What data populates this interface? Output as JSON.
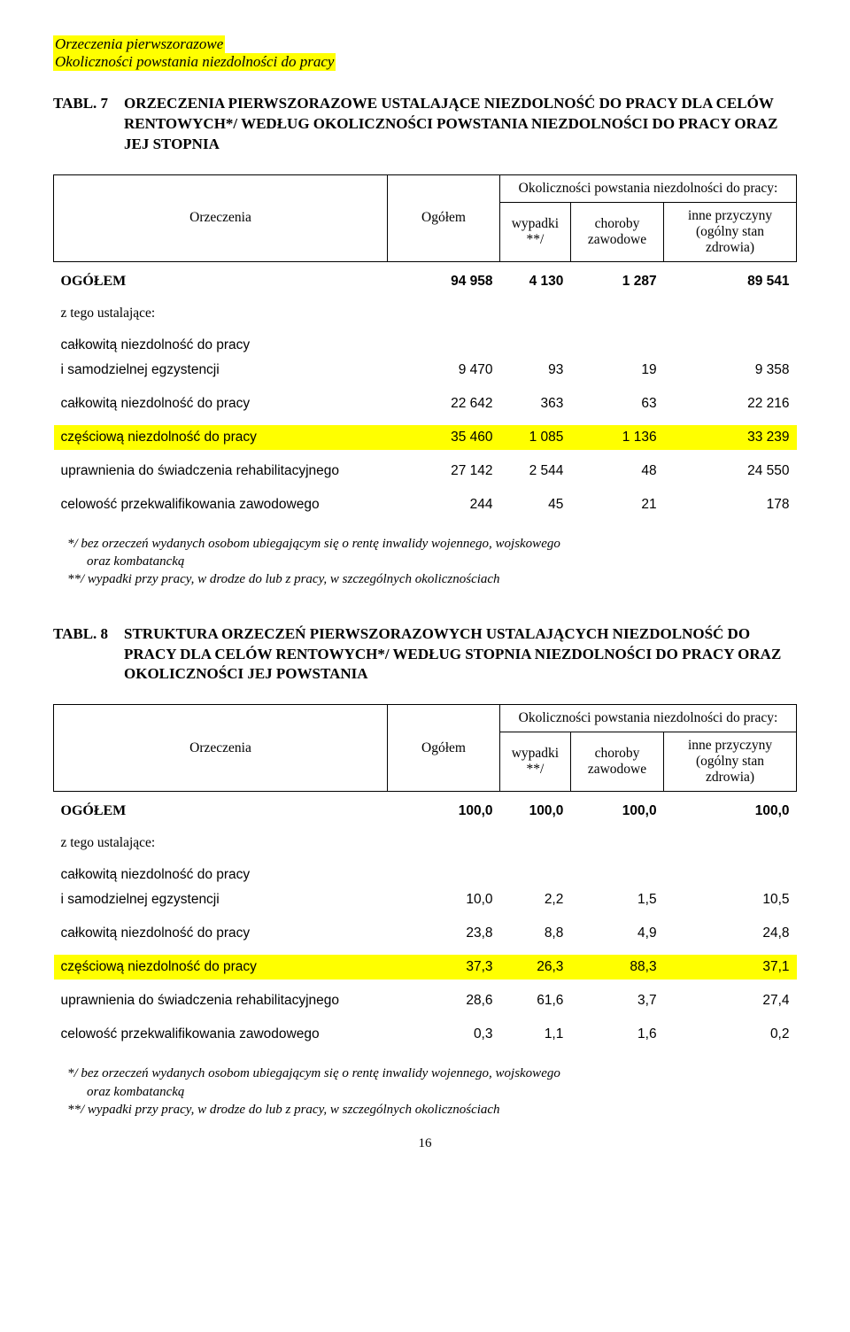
{
  "header": {
    "line1": "Orzeczenia pierwszorazowe",
    "line2": "Okoliczności powstania niezdolności do pracy"
  },
  "table7": {
    "label": "TABL. 7",
    "title": "ORZECZENIA PIERWSZORAZOWE USTALAJĄCE NIEZDOLNOŚĆ  DO PRACY DLA CELÓW RENTOWYCH*/  WEDŁUG OKOLICZNOŚCI POWSTANIA NIEZDOLNOŚCI DO PRACY ORAZ JEJ STOPNIA",
    "headers": {
      "orzeczenia": "Orzeczenia",
      "ogolem": "Ogółem",
      "okolicznosci": "Okoliczności powstania niezdolności do pracy:",
      "wypadki": "wypadki **/",
      "choroby": "choroby zawodowe",
      "inne": "inne przyczyny (ogólny stan zdrowia)"
    },
    "total": {
      "label": "OGÓŁEM",
      "ogolem": "94 958",
      "wypadki": "4 130",
      "choroby": "1 287",
      "inne": "89 541"
    },
    "subhead": "z tego ustalające:",
    "rows": [
      {
        "label": "całkowitą niezdolność do pracy",
        "label2": "i samodzielnej egzystencji",
        "ogolem": "9 470",
        "wypadki": "93",
        "choroby": "19",
        "inne": "9 358",
        "hl": false,
        "twoLine": true
      },
      {
        "label": "całkowitą niezdolność do pracy",
        "ogolem": "22 642",
        "wypadki": "363",
        "choroby": "63",
        "inne": "22 216",
        "hl": false
      },
      {
        "label": "częściową niezdolność do pracy",
        "ogolem": "35 460",
        "wypadki": "1 085",
        "choroby": "1 136",
        "inne": "33 239",
        "hl": true
      },
      {
        "label": "uprawnienia do świadczenia rehabilitacyjnego",
        "ogolem": "27 142",
        "wypadki": "2 544",
        "choroby": "48",
        "inne": "24 550",
        "hl": false
      },
      {
        "label": "celowość przekwalifikowania zawodowego",
        "ogolem": "244",
        "wypadki": "45",
        "choroby": "21",
        "inne": "178",
        "hl": false
      }
    ]
  },
  "footnote1": {
    "line1": "*/ bez orzeczeń wydanych osobom ubiegającym się o rentę inwalidy wojennego, wojskowego",
    "line1b": "oraz kombatancką",
    "line2": "**/ wypadki przy pracy, w drodze do lub z pracy, w szczególnych okolicznościach"
  },
  "table8": {
    "label": "TABL. 8",
    "title": "STRUKTURA ORZECZEŃ PIERWSZORAZOWYCH USTALAJĄCYCH NIEZDOLNOŚĆ DO PRACY  DLA CELÓW RENTOWYCH*/  WEDŁUG STOPNIA NIEZDOLNOŚCI DO PRACY ORAZ OKOLICZNOŚCI JEJ POWSTANIA",
    "headers": {
      "orzeczenia": "Orzeczenia",
      "ogolem": "Ogółem",
      "okolicznosci": "Okoliczności powstania niezdolności do pracy:",
      "wypadki": "wypadki **/",
      "choroby": "choroby zawodowe",
      "inne": "inne przyczyny (ogólny stan zdrowia)"
    },
    "total": {
      "label": "OGÓŁEM",
      "ogolem": "100,0",
      "wypadki": "100,0",
      "choroby": "100,0",
      "inne": "100,0"
    },
    "subhead": "z tego ustalające:",
    "rows": [
      {
        "label": "całkowitą niezdolność do pracy",
        "label2": "i samodzielnej egzystencji",
        "ogolem": "10,0",
        "wypadki": "2,2",
        "choroby": "1,5",
        "inne": "10,5",
        "hl": false,
        "twoLine": true
      },
      {
        "label": "całkowitą niezdolność do pracy",
        "ogolem": "23,8",
        "wypadki": "8,8",
        "choroby": "4,9",
        "inne": "24,8",
        "hl": false
      },
      {
        "label": "częściową niezdolność do pracy",
        "ogolem": "37,3",
        "wypadki": "26,3",
        "choroby": "88,3",
        "inne": "37,1",
        "hl": true
      },
      {
        "label": "uprawnienia do świadczenia rehabilitacyjnego",
        "ogolem": "28,6",
        "wypadki": "61,6",
        "choroby": "3,7",
        "inne": "27,4",
        "hl": false
      },
      {
        "label": "celowość przekwalifikowania zawodowego",
        "ogolem": "0,3",
        "wypadki": "1,1",
        "choroby": "1,6",
        "inne": "0,2",
        "hl": false
      }
    ]
  },
  "footnote2": {
    "line1": "*/ bez orzeczeń wydanych osobom ubiegającym się o rentę inwalidy wojennego, wojskowego",
    "line1b": "oraz kombatancką",
    "line2": "**/ wypadki przy pracy, w drodze do lub z pracy, w szczególnych okolicznościach"
  },
  "pageNumber": "16",
  "colors": {
    "highlight": "#ffff00",
    "text": "#000000",
    "background": "#ffffff"
  }
}
